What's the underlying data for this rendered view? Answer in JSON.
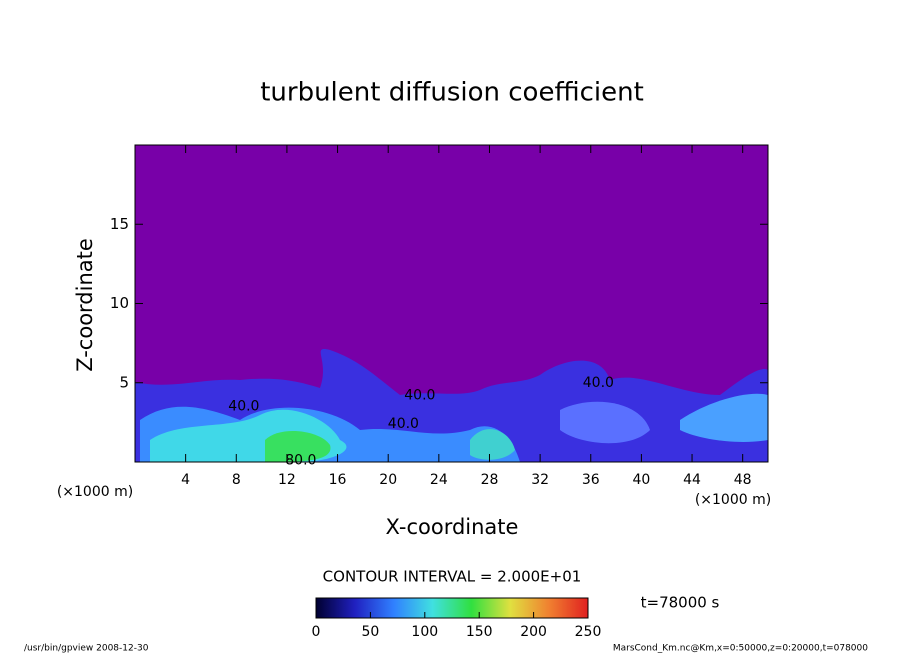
{
  "chart_data": {
    "type": "contour",
    "title": "turbulent diffusion coefficient",
    "xlabel": "X-coordinate",
    "ylabel": "Z-coordinate",
    "x_unit": "(×1000 m)",
    "y_unit": "(×1000 m)",
    "xlim": [
      0,
      50
    ],
    "xticks": [
      4,
      8,
      12,
      16,
      20,
      24,
      28,
      32,
      36,
      40,
      44,
      48
    ],
    "ylim": [
      0,
      20
    ],
    "yticks": [
      5,
      10,
      15
    ],
    "contour_interval": "CONTOUR INTERVAL = 2.000E+01",
    "time_label": "t=78000 s",
    "contour_labels": [
      {
        "value": 40,
        "label": "40.0",
        "x": 22.5,
        "y": 4.2
      },
      {
        "value": 40,
        "label": "40.0",
        "x": 21.2,
        "y": 2.4
      },
      {
        "value": 40,
        "label": "40.0",
        "x": 8.6,
        "y": 3.5
      },
      {
        "value": 40,
        "label": "40.0",
        "x": 36.6,
        "y": 5.0
      },
      {
        "value": 80,
        "label": "80.0",
        "x": 13.1,
        "y": 0.1
      }
    ],
    "clim": [
      0,
      250
    ],
    "cticks": [
      0,
      50,
      100,
      150,
      200,
      250
    ],
    "colormap": [
      "#000030",
      "#2020c0",
      "#3080ff",
      "#40e0e0",
      "#30e040",
      "#e0e040",
      "#f08030",
      "#e02020"
    ],
    "background_color": "#7800a8",
    "footer_left": "/usr/bin/gpview  2008-12-30",
    "footer_right": "MarsCond_Km.nc@Km,x=0:50000,z=0:20000,t=078000"
  }
}
